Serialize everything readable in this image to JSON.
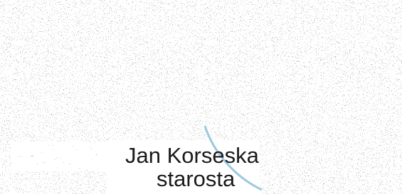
{
  "caption": {
    "name": "Jan Korseska",
    "role": "starosta"
  }
}
